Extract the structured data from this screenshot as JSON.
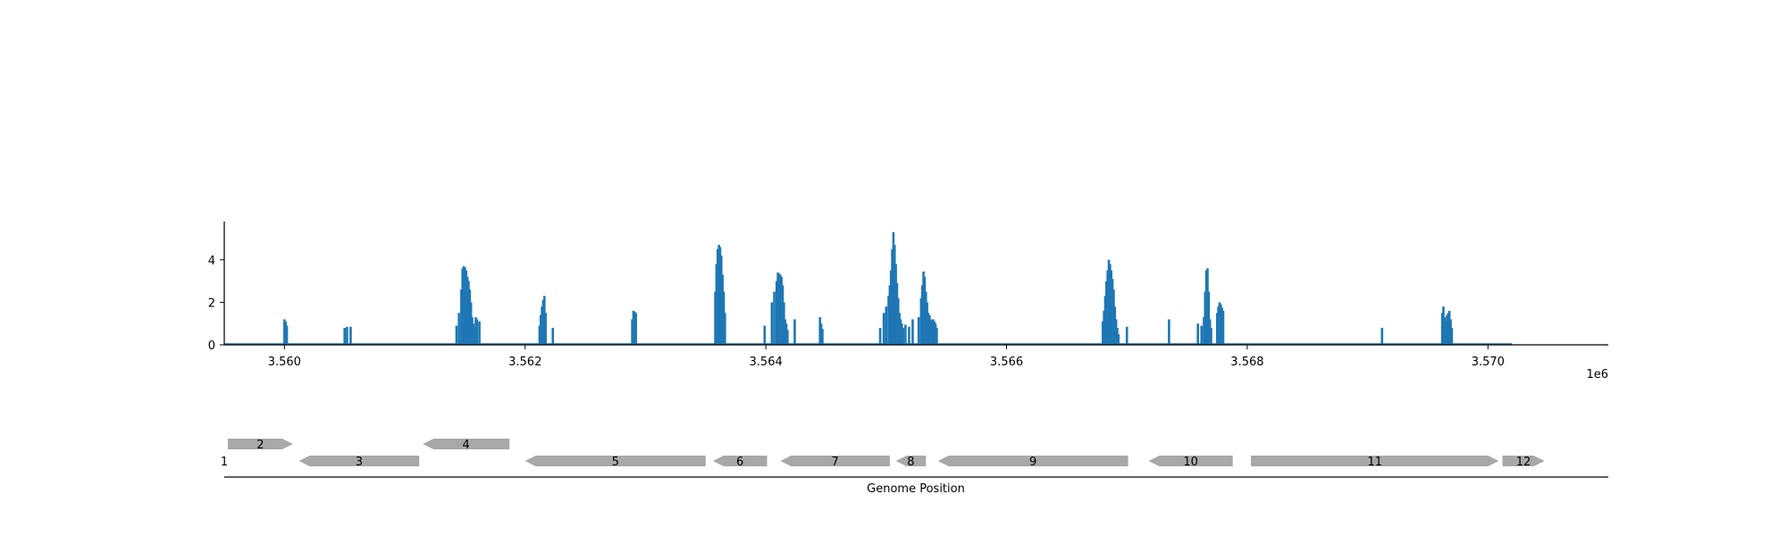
{
  "chart_data": [
    {
      "type": "bar",
      "title": "",
      "xlabel": "",
      "ylabel": "",
      "x_offset_label": "1e6",
      "xlim": [
        3559500,
        3571000
      ],
      "ylim": [
        0,
        5.8
      ],
      "grid": false,
      "legend": "none",
      "xticks": [
        3560000,
        3562000,
        3564000,
        3566000,
        3568000,
        3570000
      ],
      "xtick_labels": [
        "3.560",
        "3.562",
        "3.564",
        "3.566",
        "3.568",
        "3.570"
      ],
      "yticks": [
        0,
        2,
        4
      ],
      "ytick_labels": [
        "0",
        "2",
        "4"
      ],
      "baseline_range": [
        3559500,
        3570200
      ],
      "series": [
        {
          "x": [
            3560000,
            3560010,
            3560020,
            3560500,
            3560520,
            3560550,
            3561430,
            3561450,
            3561470,
            3561480,
            3561490,
            3561500,
            3561510,
            3561520,
            3561530,
            3561540,
            3561550,
            3561560,
            3561570,
            3561580,
            3561590,
            3561600,
            3561620,
            3562120,
            3562130,
            3562140,
            3562150,
            3562160,
            3562170,
            3562230,
            3562890,
            3562900,
            3562910,
            3562920,
            3563580,
            3563590,
            3563600,
            3563610,
            3563620,
            3563630,
            3563640,
            3563650,
            3563660,
            3563990,
            3564050,
            3564070,
            3564090,
            3564100,
            3564110,
            3564120,
            3564130,
            3564140,
            3564150,
            3564160,
            3564170,
            3564180,
            3564240,
            3564450,
            3564460,
            3564470,
            3564950,
            3564980,
            3565000,
            3565020,
            3565030,
            3565040,
            3565050,
            3565060,
            3565070,
            3565080,
            3565090,
            3565100,
            3565110,
            3565120,
            3565130,
            3565140,
            3565160,
            3565190,
            3565220,
            3565270,
            3565290,
            3565300,
            3565310,
            3565320,
            3565330,
            3565340,
            3565350,
            3565360,
            3565370,
            3565380,
            3565390,
            3565400,
            3565410,
            3565420,
            3566800,
            3566810,
            3566820,
            3566830,
            3566840,
            3566850,
            3566860,
            3566870,
            3566880,
            3566890,
            3566900,
            3566910,
            3566920,
            3566930,
            3567000,
            3567350,
            3567590,
            3567620,
            3567640,
            3567650,
            3567660,
            3567670,
            3567680,
            3567690,
            3567700,
            3567750,
            3567760,
            3567770,
            3567780,
            3567790,
            3567800,
            3569120,
            3569620,
            3569630,
            3569640,
            3569650,
            3569660,
            3569670,
            3569680,
            3569690,
            3569700
          ],
          "values": [
            1.2,
            1.1,
            0.9,
            0.8,
            0.85,
            0.85,
            0.9,
            1.5,
            2.6,
            3.6,
            3.7,
            3.65,
            3.5,
            3.2,
            3.0,
            2.6,
            2.0,
            1.3,
            1.0,
            0.8,
            1.3,
            1.2,
            1.1,
            0.9,
            1.4,
            1.8,
            2.1,
            2.3,
            1.5,
            0.8,
            1.2,
            1.6,
            1.55,
            1.5,
            2.5,
            3.8,
            4.5,
            4.7,
            4.6,
            4.2,
            3.3,
            2.5,
            1.5,
            0.9,
            2.0,
            2.5,
            3.0,
            3.4,
            3.35,
            3.3,
            3.2,
            2.8,
            2.0,
            1.2,
            1.0,
            0.7,
            1.2,
            1.3,
            1.0,
            0.75,
            0.8,
            1.5,
            1.8,
            2.3,
            2.8,
            3.5,
            4.5,
            5.3,
            4.7,
            3.8,
            2.9,
            2.2,
            1.5,
            1.2,
            1.0,
            0.8,
            0.95,
            0.85,
            1.2,
            1.3,
            2.2,
            2.8,
            3.45,
            3.2,
            2.5,
            2.0,
            1.5,
            1.4,
            1.2,
            1.1,
            1.2,
            1.1,
            1.0,
            0.8,
            1.1,
            1.6,
            2.3,
            3.0,
            3.5,
            4.0,
            3.8,
            3.5,
            3.1,
            2.6,
            1.8,
            1.2,
            0.8,
            0.5,
            0.85,
            1.2,
            1.0,
            0.9,
            1.3,
            2.5,
            3.5,
            3.6,
            2.5,
            1.2,
            0.8,
            1.5,
            1.8,
            2.0,
            1.9,
            1.75,
            1.6,
            0.8,
            1.5,
            1.8,
            1.3,
            1.1,
            1.4,
            1.5,
            1.6,
            1.2,
            0.8
          ]
        }
      ]
    },
    {
      "type": "gene_map",
      "xlabel": "Genome Position",
      "genes": [
        {
          "label": "1",
          "start": 3559470,
          "end": 3559530,
          "strand": "none",
          "row": 0
        },
        {
          "label": "2",
          "start": 3559530,
          "end": 3560070,
          "strand": "+",
          "row": 1
        },
        {
          "label": "3",
          "start": 3560120,
          "end": 3561120,
          "strand": "-",
          "row": 0
        },
        {
          "label": "4",
          "start": 3561150,
          "end": 3561870,
          "strand": "-",
          "row": 1
        },
        {
          "label": "5",
          "start": 3562000,
          "end": 3563500,
          "strand": "-",
          "row": 0
        },
        {
          "label": "6",
          "start": 3563560,
          "end": 3564010,
          "strand": "-",
          "row": 0
        },
        {
          "label": "7",
          "start": 3564120,
          "end": 3565030,
          "strand": "-",
          "row": 0
        },
        {
          "label": "8",
          "start": 3565080,
          "end": 3565330,
          "strand": "-",
          "row": 0
        },
        {
          "label": "9",
          "start": 3565430,
          "end": 3567010,
          "strand": "-",
          "row": 0
        },
        {
          "label": "10",
          "start": 3567180,
          "end": 3567880,
          "strand": "-",
          "row": 0
        },
        {
          "label": "11",
          "start": 3568030,
          "end": 3570090,
          "strand": "+",
          "row": 0
        },
        {
          "label": "12",
          "start": 3570120,
          "end": 3570470,
          "strand": "+",
          "row": 0
        }
      ]
    }
  ],
  "colors": {
    "bars": "#1f77b4",
    "genes": "#a8a8a8",
    "axis": "#000000"
  }
}
